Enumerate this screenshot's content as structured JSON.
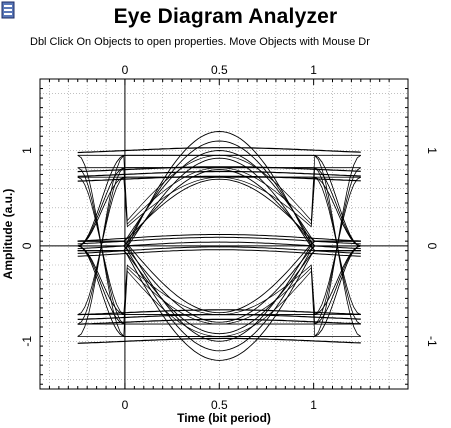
{
  "window": {
    "title": "Eye Diagram Analyzer",
    "instructions": "Dbl Click On Objects to open properties.  Move Objects with Mouse Dr",
    "icon": "document-icon"
  },
  "chart_data": {
    "type": "line",
    "xlabel": "Time (bit period)",
    "ylabel": "Amplitude (a.u.)",
    "xlim": [
      -0.45,
      1.5
    ],
    "ylim": [
      -1.5,
      1.75
    ],
    "bottom_ticks": [
      {
        "value": 0,
        "label": "0"
      },
      {
        "value": 0.5,
        "label": "0.5"
      },
      {
        "value": 1,
        "label": "1"
      }
    ],
    "top_ticks": [
      {
        "value": 0,
        "label": "0"
      },
      {
        "value": 0.5,
        "label": "0.5"
      },
      {
        "value": 1,
        "label": "1"
      }
    ],
    "left_ticks": [
      {
        "value": 1,
        "label": "1"
      },
      {
        "value": 0,
        "label": "0"
      },
      {
        "value": -1,
        "label": "-1"
      }
    ],
    "right_ticks": [
      {
        "value": 1,
        "label": "1"
      },
      {
        "value": 0,
        "label": "0"
      },
      {
        "value": -1,
        "label": "-1"
      }
    ],
    "grid": true,
    "trace_x_range": [
      -0.25,
      1.25
    ],
    "levels": {
      "one": [
        0.7,
        0.8,
        0.92,
        1.0,
        1.1,
        1.2
      ],
      "zero": [
        0.0,
        0.05,
        -0.05,
        0.08,
        -0.08
      ],
      "minus_one": [
        -0.7,
        -0.8,
        -0.92,
        -1.0,
        -1.1,
        -1.2
      ]
    }
  }
}
